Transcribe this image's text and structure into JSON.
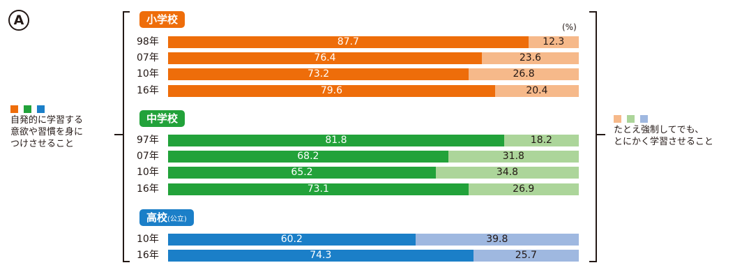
{
  "marker": "A",
  "unit": "(%)",
  "legend_left": {
    "colors": [
      "#ee6d0a",
      "#22a23a",
      "#1b7fc8"
    ],
    "lines": [
      "自発的に学習する",
      "意欲や習慣を身に",
      "つけさせること"
    ]
  },
  "legend_right": {
    "colors": [
      "#f6b98a",
      "#acd59a",
      "#9fb8e0"
    ],
    "lines": [
      "たとえ強制してでも、",
      "とにかく学習させること"
    ]
  },
  "chart_data": {
    "type": "bar",
    "stacked": true,
    "orientation": "horizontal",
    "xlim": [
      0,
      100
    ],
    "series_names": [
      "自発的に学習する意欲や習慣を身につけさせること",
      "たとえ強制してでも、とにかく学習させること"
    ],
    "groups": [
      {
        "name": "小学校",
        "suffix": "",
        "dark": "#ee6d0a",
        "light": "#f6b98a",
        "rows": [
          {
            "label": "98年",
            "a": 87.7,
            "b": 12.3
          },
          {
            "label": "07年",
            "a": 76.4,
            "b": 23.6
          },
          {
            "label": "10年",
            "a": 73.2,
            "b": 26.8
          },
          {
            "label": "16年",
            "a": 79.6,
            "b": 20.4
          }
        ]
      },
      {
        "name": "中学校",
        "suffix": "",
        "dark": "#22a23a",
        "light": "#acd59a",
        "rows": [
          {
            "label": "97年",
            "a": 81.8,
            "b": 18.2
          },
          {
            "label": "07年",
            "a": 68.2,
            "b": 31.8
          },
          {
            "label": "10年",
            "a": 65.2,
            "b": 34.8
          },
          {
            "label": "16年",
            "a": 73.1,
            "b": 26.9
          }
        ]
      },
      {
        "name": "高校",
        "suffix": "(公立)",
        "dark": "#1b7fc8",
        "light": "#9fb8e0",
        "rows": [
          {
            "label": "10年",
            "a": 60.2,
            "b": 39.8
          },
          {
            "label": "16年",
            "a": 74.3,
            "b": 25.7
          }
        ]
      }
    ]
  }
}
